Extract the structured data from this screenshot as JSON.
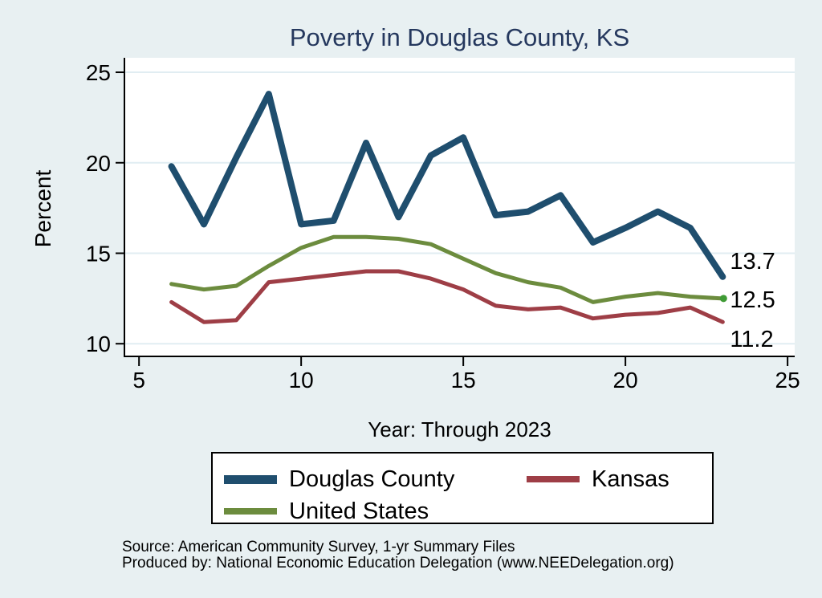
{
  "colors": {
    "background": "#e8f0f2",
    "plot_background": "#ffffff",
    "gridline": "#e1edf2",
    "axis": "#000000",
    "title_text": "#25385e",
    "tick_text": "#000000",
    "end_marker_green": "#3f9b35"
  },
  "footer": {
    "line1": "Source: American Community Survey, 1-yr Summary Files",
    "line2": "Produced by: National Economic Education Delegation (www.NEEDelegation.org)"
  },
  "chart_data": {
    "type": "line",
    "title": "Poverty in Douglas County, KS",
    "xlabel": "Year: Through 2023",
    "ylabel": "Percent",
    "grid": true,
    "legend": {
      "position": "bottom",
      "columns": 2,
      "order": [
        0,
        1,
        2
      ]
    },
    "x": [
      6,
      7,
      8,
      9,
      10,
      11,
      12,
      13,
      14,
      15,
      16,
      17,
      18,
      19,
      20,
      21,
      22,
      23
    ],
    "xticks": [
      5,
      10,
      15,
      20,
      25
    ],
    "yticks": [
      10,
      15,
      20,
      25
    ],
    "xlim": [
      4.55,
      25.22
    ],
    "ylim": [
      9.3,
      25.8
    ],
    "series": [
      {
        "name": "Douglas County",
        "color": "#1f4e6e",
        "line_width": 8,
        "values": [
          19.8,
          16.6,
          20.3,
          23.8,
          16.6,
          16.8,
          21.1,
          17.0,
          20.4,
          21.4,
          17.1,
          17.3,
          18.2,
          15.6,
          16.4,
          17.3,
          16.4,
          13.7
        ],
        "end_label": "13.7",
        "end_label_dy": -10,
        "end_marker": false
      },
      {
        "name": "Kansas",
        "color": "#9e3e46",
        "line_width": 5,
        "values": [
          12.3,
          11.2,
          11.3,
          13.4,
          13.6,
          13.8,
          14.0,
          14.0,
          13.6,
          13.0,
          12.1,
          11.9,
          12.0,
          11.4,
          11.6,
          11.7,
          12.0,
          11.2
        ],
        "end_label": "11.2",
        "end_label_dy": 31,
        "end_marker": false
      },
      {
        "name": "United States",
        "color": "#6c8c3e",
        "line_width": 5,
        "values": [
          13.3,
          13.0,
          13.2,
          14.3,
          15.3,
          15.9,
          15.9,
          15.8,
          15.5,
          14.7,
          13.9,
          13.4,
          13.1,
          12.3,
          12.6,
          12.8,
          12.6,
          12.5
        ],
        "end_label": "12.5",
        "end_label_dy": 11,
        "end_marker": true
      }
    ]
  }
}
